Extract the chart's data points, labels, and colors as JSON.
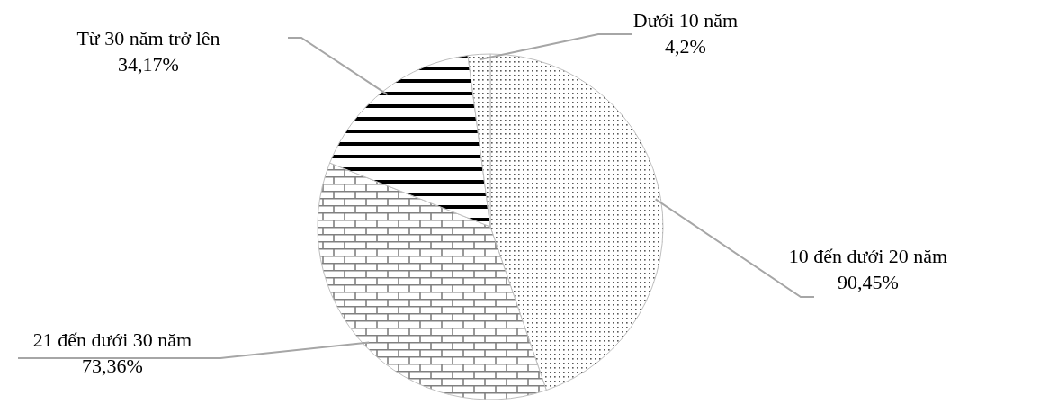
{
  "chart_data": {
    "type": "pie",
    "categories": [
      "10 đến dưới 20 năm",
      "21 đến dưới 30 năm",
      "Từ 30 năm trở lên",
      "Dưới 10 năm"
    ],
    "values": [
      90.45,
      73.36,
      34.17,
      4.2
    ],
    "value_labels": [
      "90,45%",
      "73,36%",
      "34,17%",
      "4,2%"
    ],
    "colors": [
      "#bfbfbf",
      "#bfbfbf",
      "#bfbfbf",
      "#bfbfbf"
    ]
  }
}
